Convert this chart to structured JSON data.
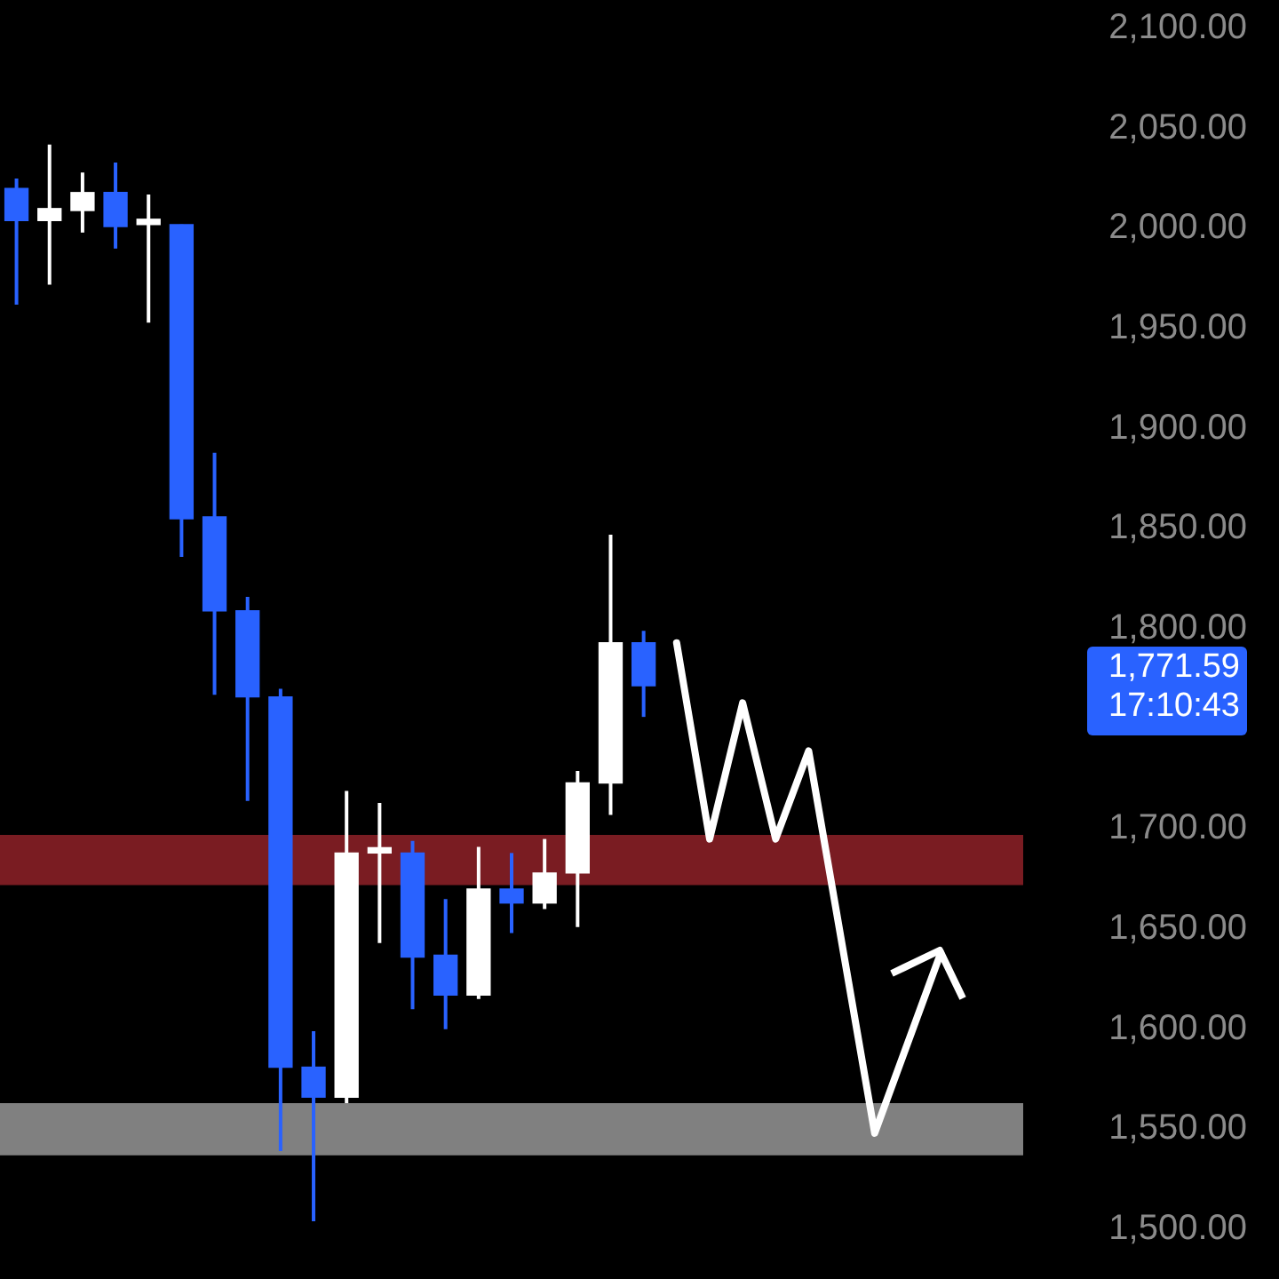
{
  "chart_data": {
    "type": "candlestick",
    "categories": [
      null,
      null,
      null,
      null,
      null,
      null,
      null,
      null,
      null,
      null,
      null,
      null,
      null,
      null,
      null,
      null,
      null,
      null,
      null,
      null,
      null,
      null,
      null,
      null,
      null,
      null,
      null,
      null,
      null,
      null,
      null
    ],
    "ohlc": [
      [
        2020,
        2025,
        1962,
        2004
      ],
      [
        2004,
        2042,
        1972,
        2010
      ],
      [
        2009,
        2028,
        1998,
        2018
      ],
      [
        2018,
        2033,
        1990,
        2001
      ],
      [
        2002,
        2017,
        1953,
        2002
      ],
      [
        2002,
        2002,
        1836,
        1855
      ],
      [
        1856,
        1888,
        1767,
        1809
      ],
      [
        1809,
        1816,
        1714,
        1766
      ],
      [
        1766,
        1770,
        1539,
        1581
      ],
      [
        1581,
        1599,
        1504,
        1566
      ],
      [
        1566,
        1719,
        1563,
        1688
      ],
      [
        1688,
        1713,
        1643,
        1688
      ],
      [
        1688,
        1694,
        1610,
        1636
      ],
      [
        1637,
        1665,
        1600,
        1617
      ],
      [
        1617,
        1691,
        1615,
        1670
      ],
      [
        1670,
        1688,
        1648,
        1663
      ],
      [
        1663,
        1695,
        1660,
        1678
      ],
      [
        1678,
        1729,
        1651,
        1723
      ],
      [
        1723,
        1847,
        1707,
        1793
      ],
      [
        1793,
        1799,
        1756,
        1771.59
      ],
      null,
      null,
      null,
      null,
      null,
      null,
      null,
      null,
      null,
      null,
      null
    ],
    "colors": [
      "#2962ff",
      "#ffffff",
      "#ffffff",
      "#2962ff",
      "#ffffff",
      "#2962ff",
      "#2962ff",
      "#2962ff",
      "#2962ff",
      "#2962ff",
      "#ffffff",
      "#ffffff",
      "#2962ff",
      "#2962ff",
      "#ffffff",
      "#2962ff",
      "#ffffff",
      "#ffffff",
      "#ffffff",
      "#2962ff",
      null,
      null,
      null,
      null,
      null,
      null,
      null,
      null,
      null,
      null,
      null
    ],
    "ylim": [
      1500,
      2100
    ],
    "yticks": [
      {
        "value": 1500,
        "label": "1,500.00"
      },
      {
        "value": 1550,
        "label": "1,550.00"
      },
      {
        "value": 1600,
        "label": "1,600.00"
      },
      {
        "value": 1650,
        "label": "1,650.00"
      },
      {
        "value": 1700,
        "label": "1,700.00"
      },
      {
        "value": 1800,
        "label": "1,800.00"
      },
      {
        "value": 1850,
        "label": "1,850.00"
      },
      {
        "value": 1900,
        "label": "1,900.00"
      },
      {
        "value": 1950,
        "label": "1,950.00"
      },
      {
        "value": 2000,
        "label": "2,000.00"
      },
      {
        "value": 2050,
        "label": "2,050.00"
      },
      {
        "value": 2100,
        "label": "2,100.00"
      }
    ],
    "tick_labels": "y",
    "legend": false,
    "marker": "none",
    "series": [
      {
        "type": "line",
        "color": "#ffffff",
        "values": [
          null,
          null,
          null,
          null,
          null,
          null,
          null,
          null,
          null,
          null,
          null,
          null,
          null,
          null,
          null,
          null,
          null,
          null,
          null,
          null,
          1793,
          1695,
          1763,
          1695,
          1739,
          null,
          1548,
          null,
          1638,
          null,
          null
        ]
      }
    ],
    "annotations": [
      "1,771.59\n17:10:43"
    ],
    "bands": [
      {
        "axis": "y",
        "from": 1672,
        "to": 1697,
        "color": "#7a1c22"
      },
      {
        "axis": "y",
        "from": 1537,
        "to": 1563,
        "color": "#808080"
      }
    ]
  }
}
